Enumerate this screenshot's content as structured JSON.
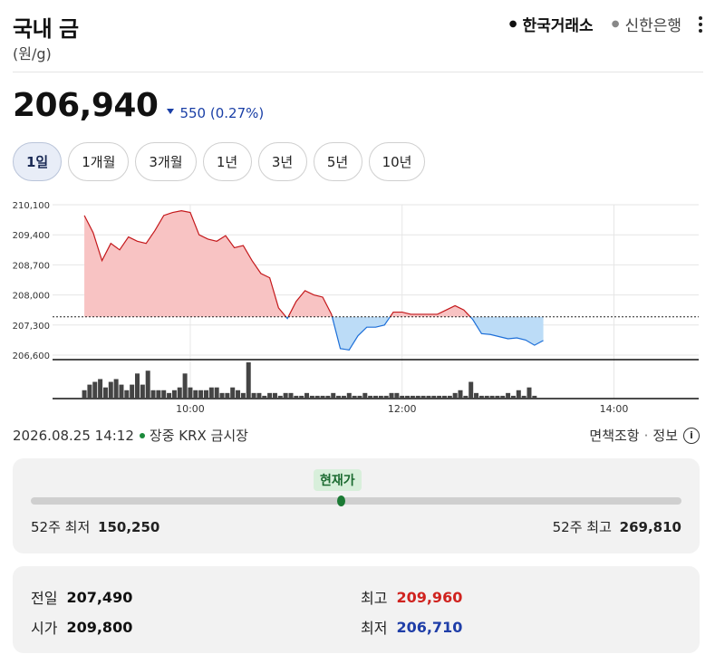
{
  "header": {
    "title": "국내 금",
    "unit": "(원/g)",
    "sources": [
      "한국거래소",
      "신한은행"
    ],
    "active_source": "한국거래소"
  },
  "quote": {
    "price": "206,940",
    "change": "550 (0.27%)",
    "direction": "down"
  },
  "periods": [
    "1일",
    "1개월",
    "3개월",
    "1년",
    "3년",
    "5년",
    "10년"
  ],
  "active_period": "1일",
  "chart_data": {
    "type": "area",
    "y_ticks": [
      "210,100",
      "209,400",
      "208,700",
      "208,000",
      "207,300",
      "206,600"
    ],
    "x_ticks": [
      "10:00",
      "12:00",
      "14:00"
    ],
    "ylim": [
      206600,
      210100
    ],
    "baseline": 207490,
    "colors": {
      "above_fill": "#f8c3c3",
      "above_line": "#c4181b",
      "below_fill": "#bcdcf7",
      "below_line": "#1d6fd8"
    },
    "price": [
      [
        "09:00",
        209850
      ],
      [
        "09:05",
        209450
      ],
      [
        "09:10",
        208800
      ],
      [
        "09:15",
        209200
      ],
      [
        "09:20",
        209050
      ],
      [
        "09:25",
        209350
      ],
      [
        "09:30",
        209250
      ],
      [
        "09:35",
        209200
      ],
      [
        "09:40",
        209500
      ],
      [
        "09:45",
        209850
      ],
      [
        "09:50",
        209920
      ],
      [
        "09:55",
        209960
      ],
      [
        "10:00",
        209920
      ],
      [
        "10:05",
        209400
      ],
      [
        "10:10",
        209300
      ],
      [
        "10:15",
        209250
      ],
      [
        "10:20",
        209380
      ],
      [
        "10:25",
        209100
      ],
      [
        "10:30",
        209150
      ],
      [
        "10:35",
        208800
      ],
      [
        "10:40",
        208500
      ],
      [
        "10:45",
        208400
      ],
      [
        "10:50",
        207700
      ],
      [
        "10:55",
        207450
      ],
      [
        "11:00",
        207850
      ],
      [
        "11:05",
        208100
      ],
      [
        "11:10",
        208000
      ],
      [
        "11:15",
        207950
      ],
      [
        "11:20",
        207550
      ],
      [
        "11:25",
        206750
      ],
      [
        "11:30",
        206720
      ],
      [
        "11:35",
        207050
      ],
      [
        "11:40",
        207250
      ],
      [
        "11:45",
        207250
      ],
      [
        "11:50",
        207300
      ],
      [
        "11:55",
        207600
      ],
      [
        "12:00",
        207600
      ],
      [
        "12:05",
        207550
      ],
      [
        "12:10",
        207550
      ],
      [
        "12:15",
        207550
      ],
      [
        "12:20",
        207550
      ],
      [
        "12:25",
        207650
      ],
      [
        "12:30",
        207750
      ],
      [
        "12:35",
        207650
      ],
      [
        "12:40",
        207430
      ],
      [
        "12:45",
        207100
      ],
      [
        "12:50",
        207080
      ],
      [
        "12:55",
        207030
      ],
      [
        "13:00",
        206980
      ],
      [
        "13:05",
        207000
      ],
      [
        "13:10",
        206950
      ],
      [
        "13:15",
        206830
      ],
      [
        "13:20",
        206940
      ]
    ],
    "volume": [
      [
        "09:00",
        3
      ],
      [
        "09:03",
        5
      ],
      [
        "09:06",
        6
      ],
      [
        "09:09",
        7
      ],
      [
        "09:12",
        4
      ],
      [
        "09:15",
        6
      ],
      [
        "09:18",
        7
      ],
      [
        "09:21",
        5
      ],
      [
        "09:24",
        3
      ],
      [
        "09:27",
        5
      ],
      [
        "09:30",
        9
      ],
      [
        "09:33",
        5
      ],
      [
        "09:36",
        10
      ],
      [
        "09:39",
        3
      ],
      [
        "09:42",
        3
      ],
      [
        "09:45",
        3
      ],
      [
        "09:48",
        2
      ],
      [
        "09:51",
        3
      ],
      [
        "09:54",
        4
      ],
      [
        "09:57",
        9
      ],
      [
        "10:00",
        4
      ],
      [
        "10:03",
        3
      ],
      [
        "10:06",
        3
      ],
      [
        "10:09",
        3
      ],
      [
        "10:12",
        4
      ],
      [
        "10:15",
        4
      ],
      [
        "10:18",
        2
      ],
      [
        "10:21",
        2
      ],
      [
        "10:24",
        4
      ],
      [
        "10:27",
        3
      ],
      [
        "10:30",
        2
      ],
      [
        "10:33",
        13
      ],
      [
        "10:36",
        2
      ],
      [
        "10:39",
        2
      ],
      [
        "10:42",
        1
      ],
      [
        "10:45",
        2
      ],
      [
        "10:48",
        2
      ],
      [
        "10:51",
        1
      ],
      [
        "10:54",
        2
      ],
      [
        "10:57",
        2
      ],
      [
        "11:00",
        1
      ],
      [
        "11:03",
        1
      ],
      [
        "11:06",
        2
      ],
      [
        "11:09",
        1
      ],
      [
        "11:12",
        1
      ],
      [
        "11:15",
        1
      ],
      [
        "11:18",
        1
      ],
      [
        "11:21",
        2
      ],
      [
        "11:24",
        1
      ],
      [
        "11:27",
        1
      ],
      [
        "11:30",
        2
      ],
      [
        "11:33",
        1
      ],
      [
        "11:36",
        1
      ],
      [
        "11:39",
        2
      ],
      [
        "11:42",
        1
      ],
      [
        "11:45",
        1
      ],
      [
        "11:48",
        1
      ],
      [
        "11:51",
        1
      ],
      [
        "11:54",
        2
      ],
      [
        "11:57",
        2
      ],
      [
        "12:00",
        1
      ],
      [
        "12:03",
        1
      ],
      [
        "12:06",
        1
      ],
      [
        "12:09",
        1
      ],
      [
        "12:12",
        1
      ],
      [
        "12:15",
        1
      ],
      [
        "12:18",
        1
      ],
      [
        "12:21",
        1
      ],
      [
        "12:24",
        1
      ],
      [
        "12:27",
        1
      ],
      [
        "12:30",
        2
      ],
      [
        "12:33",
        3
      ],
      [
        "12:36",
        1
      ],
      [
        "12:39",
        6
      ],
      [
        "12:42",
        2
      ],
      [
        "12:45",
        1
      ],
      [
        "12:48",
        1
      ],
      [
        "12:51",
        1
      ],
      [
        "12:54",
        1
      ],
      [
        "12:57",
        1
      ],
      [
        "13:00",
        2
      ],
      [
        "13:03",
        1
      ],
      [
        "13:06",
        3
      ],
      [
        "13:09",
        1
      ],
      [
        "13:12",
        4
      ],
      [
        "13:15",
        1
      ]
    ]
  },
  "info": {
    "datetime": "2026.08.25 14:12",
    "status": "장중 KRX 금시장",
    "link1": "면책조항",
    "sep": "·",
    "link2": "정보",
    "info_icon": "i"
  },
  "range": {
    "badge": "현재가",
    "low_label": "52주 최저",
    "low_value": "150,250",
    "high_label": "52주 최고",
    "high_value": "269,810",
    "position": 0.476
  },
  "stats": {
    "prev_label": "전일",
    "prev_value": "207,490",
    "open_label": "시가",
    "open_value": "209,800",
    "high_label": "최고",
    "high_value": "209,960",
    "low_label": "최저",
    "low_value": "206,710"
  }
}
